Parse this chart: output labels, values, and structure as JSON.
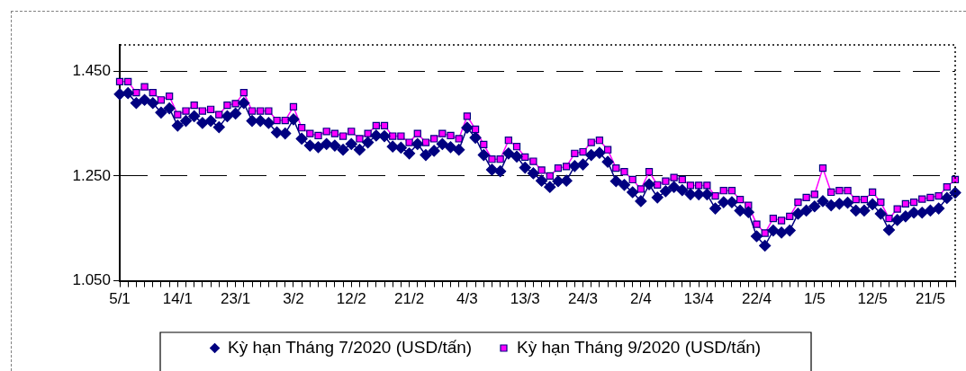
{
  "chart_data": {
    "type": "line",
    "categories": [
      "5/1",
      null,
      null,
      null,
      null,
      null,
      null,
      "14/1",
      null,
      null,
      null,
      null,
      null,
      null,
      "23/1",
      null,
      null,
      null,
      null,
      null,
      null,
      "3/2",
      null,
      null,
      null,
      null,
      null,
      null,
      "12/2",
      null,
      null,
      null,
      null,
      null,
      null,
      "21/2",
      null,
      null,
      null,
      null,
      null,
      null,
      "4/3",
      null,
      null,
      null,
      null,
      null,
      null,
      "13/3",
      null,
      null,
      null,
      null,
      null,
      null,
      "24/3",
      null,
      null,
      null,
      null,
      null,
      null,
      "2/4",
      null,
      null,
      null,
      null,
      null,
      null,
      "13/4",
      null,
      null,
      null,
      null,
      null,
      null,
      "22/4",
      null,
      null,
      null,
      null,
      null,
      null,
      "1/5",
      null,
      null,
      null,
      null,
      null,
      null,
      "12/5",
      null,
      null,
      null,
      null,
      null,
      null,
      "21/5",
      null,
      null,
      null
    ],
    "series": [
      {
        "name": "Kỳ hạn Tháng 7/2020 (USD/tấn)",
        "color": "#000080",
        "marker": "diamond",
        "values": [
          1406,
          1408,
          1389,
          1395,
          1389,
          1371,
          1379,
          1346,
          1355,
          1364,
          1351,
          1355,
          1343,
          1364,
          1369,
          1389,
          1355,
          1355,
          1351,
          1333,
          1331,
          1358,
          1321,
          1308,
          1305,
          1311,
          1308,
          1300,
          1311,
          1300,
          1314,
          1327,
          1326,
          1306,
          1304,
          1293,
          1311,
          1290,
          1298,
          1311,
          1305,
          1300,
          1342,
          1323,
          1290,
          1262,
          1259,
          1293,
          1287,
          1266,
          1255,
          1241,
          1229,
          1240,
          1241,
          1269,
          1272,
          1290,
          1294,
          1277,
          1240,
          1233,
          1219,
          1202,
          1234,
          1209,
          1221,
          1229,
          1223,
          1215,
          1215,
          1215,
          1188,
          1200,
          1200,
          1184,
          1181,
          1135,
          1117,
          1146,
          1142,
          1146,
          1178,
          1184,
          1192,
          1202,
          1194,
          1197,
          1199,
          1184,
          1184,
          1196,
          1178,
          1147,
          1166,
          1173,
          1180,
          1180,
          1184,
          1188,
          1208,
          1218
        ]
      },
      {
        "name": "Kỳ hạn Tháng 9/2020 (USD/tấn)",
        "color": "#ff00ff",
        "marker": "square",
        "values": [
          1430,
          1430,
          1409,
          1420,
          1409,
          1395,
          1402,
          1367,
          1374,
          1385,
          1374,
          1377,
          1367,
          1385,
          1388,
          1409,
          1374,
          1374,
          1374,
          1356,
          1356,
          1382,
          1342,
          1331,
          1327,
          1335,
          1331,
          1326,
          1335,
          1321,
          1331,
          1346,
          1346,
          1326,
          1326,
          1314,
          1331,
          1314,
          1321,
          1331,
          1327,
          1321,
          1364,
          1339,
          1310,
          1282,
          1282,
          1318,
          1306,
          1286,
          1278,
          1261,
          1250,
          1265,
          1268,
          1293,
          1296,
          1314,
          1318,
          1300,
          1265,
          1258,
          1243,
          1225,
          1258,
          1233,
          1240,
          1247,
          1243,
          1232,
          1232,
          1232,
          1212,
          1222,
          1222,
          1205,
          1194,
          1158,
          1141,
          1169,
          1165,
          1173,
          1200,
          1209,
          1215,
          1265,
          1219,
          1222,
          1222,
          1205,
          1205,
          1219,
          1200,
          1169,
          1187,
          1197,
          1200,
          1206,
          1209,
          1212,
          1229,
          1243
        ]
      }
    ],
    "ylim": [
      1050,
      1500
    ],
    "yticks": [
      {
        "value": 1050,
        "label": "1.050"
      },
      {
        "value": 1250,
        "label": "1.250"
      },
      {
        "value": 1450,
        "label": "1.450"
      }
    ],
    "grid": "y",
    "legend": "bottom",
    "line_style": "solid"
  }
}
